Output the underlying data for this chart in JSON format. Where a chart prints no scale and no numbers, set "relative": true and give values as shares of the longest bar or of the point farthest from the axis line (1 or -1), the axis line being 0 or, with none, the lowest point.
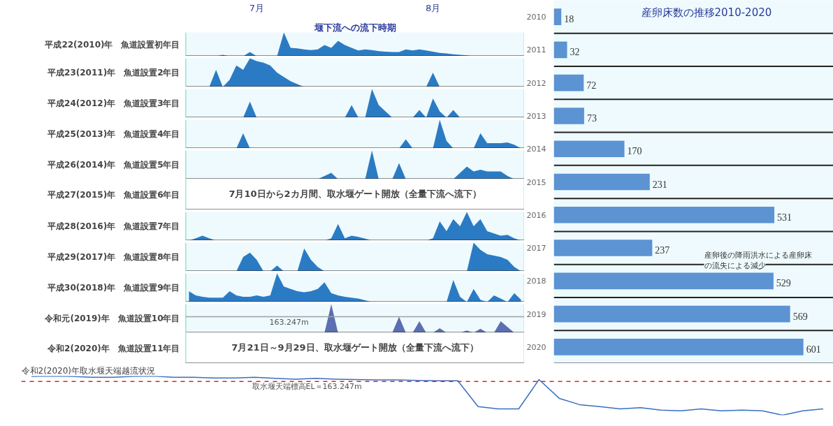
{
  "chart_data": [
    {
      "type": "area",
      "relative": true,
      "ylabel": "平成22(2010)年　魚道設置初年目",
      "tick_labels": "x",
      "annotations": [
        "堰下流への流下時期"
      ],
      "color": "#2b7bc4",
      "categories": [
        null,
        null,
        null,
        null,
        null,
        null,
        null,
        null,
        null,
        null,
        "7月",
        null,
        null,
        null,
        null,
        null,
        null,
        null,
        null,
        null,
        null,
        null,
        null,
        null,
        null,
        null,
        null,
        null,
        null,
        null,
        null,
        null,
        null,
        null,
        null,
        null,
        "8月",
        null,
        null,
        null,
        null,
        null,
        null,
        null,
        null,
        null,
        null,
        null,
        null,
        null
      ],
      "values": [
        0,
        0,
        0,
        0,
        0,
        0.06,
        0,
        0,
        0,
        0.18,
        0,
        0,
        0,
        0,
        1,
        0.35,
        0.33,
        0.29,
        0.26,
        0.29,
        0.47,
        0.35,
        0.65,
        0.47,
        0.35,
        0.24,
        0.29,
        0.26,
        0.21,
        0.19,
        0.18,
        0.18,
        0.29,
        0.24,
        0.29,
        0.24,
        0.19,
        0.14,
        0.12,
        0.08,
        0.06,
        0.04,
        0,
        0,
        0,
        0,
        0,
        0,
        0,
        0
      ]
    },
    {
      "type": "area",
      "relative": true,
      "ylabel": "平成23(2011)年　魚道設置2年目",
      "tick_labels": false,
      "color": "#2b7bc4",
      "categories": [
        null,
        null,
        null,
        null,
        null,
        null,
        null,
        null,
        null,
        null,
        null,
        null,
        null,
        null,
        null,
        null,
        null,
        null,
        null,
        null,
        null,
        null,
        null,
        null,
        null,
        null,
        null,
        null,
        null,
        null,
        null,
        null,
        null,
        null,
        null,
        null,
        null,
        null,
        null,
        null,
        null,
        null,
        null,
        null,
        null,
        null,
        null,
        null,
        null,
        null
      ],
      "values": [
        0,
        0,
        0,
        0,
        0.6,
        0,
        0.25,
        0.75,
        0.6,
        1,
        0.9,
        0.85,
        0.75,
        0.5,
        0.35,
        0.2,
        0.1,
        0,
        0,
        0,
        0,
        0,
        0,
        0,
        0,
        0,
        0,
        0,
        0,
        0,
        0,
        0,
        0,
        0,
        0,
        0,
        0.5,
        0,
        0,
        0,
        0,
        0,
        0,
        0,
        0,
        0,
        0,
        0,
        0,
        0
      ]
    },
    {
      "type": "area",
      "relative": true,
      "ylabel": "平成24(2012)年　魚道設置3年目",
      "tick_labels": false,
      "color": "#2b7bc4",
      "categories": [
        null,
        null,
        null,
        null,
        null,
        null,
        null,
        null,
        null,
        null,
        null,
        null,
        null,
        null,
        null,
        null,
        null,
        null,
        null,
        null,
        null,
        null,
        null,
        null,
        null,
        null,
        null,
        null,
        null,
        null,
        null,
        null,
        null,
        null,
        null,
        null,
        null,
        null,
        null,
        null,
        null,
        null,
        null,
        null,
        null,
        null,
        null,
        null,
        null,
        null
      ],
      "values": [
        0,
        0,
        0,
        0,
        0,
        0,
        0,
        0,
        0,
        0.56,
        0,
        0,
        0,
        0,
        0,
        0,
        0,
        0,
        0,
        0,
        0,
        0,
        0,
        0,
        0.44,
        0,
        0,
        1,
        0.44,
        0.22,
        0,
        0,
        0,
        0,
        0.27,
        0,
        0.67,
        0.22,
        0,
        0.27,
        0,
        0,
        0,
        0,
        0,
        0,
        0,
        0,
        0,
        0
      ]
    },
    {
      "type": "area",
      "relative": true,
      "ylabel": "平成25(2013)年　魚道設置4年目",
      "tick_labels": false,
      "color": "#2b7bc4",
      "categories": [
        null,
        null,
        null,
        null,
        null,
        null,
        null,
        null,
        null,
        null,
        null,
        null,
        null,
        null,
        null,
        null,
        null,
        null,
        null,
        null,
        null,
        null,
        null,
        null,
        null,
        null,
        null,
        null,
        null,
        null,
        null,
        null,
        null,
        null,
        null,
        null,
        null,
        null,
        null,
        null,
        null,
        null,
        null,
        null,
        null,
        null,
        null,
        null,
        null,
        null
      ],
      "values": [
        0,
        0,
        0,
        0,
        0,
        0,
        0,
        0,
        0.53,
        0,
        0,
        0,
        0,
        0,
        0,
        0,
        0,
        0,
        0,
        0,
        0,
        0,
        0,
        0,
        0,
        0,
        0,
        0,
        0,
        0,
        0,
        0,
        0.32,
        0,
        0,
        0,
        0,
        1,
        0.26,
        0,
        0,
        0,
        0,
        0.53,
        0.18,
        0.18,
        0.18,
        0.21,
        0.13,
        0
      ]
    },
    {
      "type": "area",
      "relative": true,
      "ylabel": "平成26(2014)年　魚道設置5年目",
      "tick_labels": false,
      "color": "#2b7bc4",
      "categories": [
        null,
        null,
        null,
        null,
        null,
        null,
        null,
        null,
        null,
        null,
        null,
        null,
        null,
        null,
        null,
        null,
        null,
        null,
        null,
        null,
        null,
        null,
        null,
        null,
        null,
        null,
        null,
        null,
        null,
        null,
        null,
        null,
        null,
        null,
        null,
        null,
        null,
        null,
        null,
        null,
        null,
        null,
        null,
        null,
        null,
        null,
        null,
        null,
        null,
        null
      ],
      "values": [
        0,
        0,
        0,
        0,
        0,
        0,
        0,
        0,
        0,
        0,
        0,
        0,
        0,
        0,
        0,
        0,
        0,
        0,
        0,
        0,
        0.11,
        0.22,
        0,
        0,
        0,
        0,
        0,
        1,
        0,
        0,
        0,
        0.56,
        0,
        0,
        0,
        0,
        0,
        0,
        0,
        0,
        0.22,
        0.44,
        0.27,
        0.33,
        0.27,
        0.27,
        0.27,
        0.11,
        0,
        0
      ]
    },
    {
      "type": "other",
      "ylabel": "平成27(2015)年　魚道設置6年目",
      "annotations": [
        "7月10日から2カ月間、取水堰ゲート開放（全量下流へ流下）"
      ]
    },
    {
      "type": "area",
      "relative": true,
      "ylabel": "平成28(2016)年　魚道設置7年目",
      "tick_labels": false,
      "color": "#2b7bc4",
      "categories": [
        null,
        null,
        null,
        null,
        null,
        null,
        null,
        null,
        null,
        null,
        null,
        null,
        null,
        null,
        null,
        null,
        null,
        null,
        null,
        null,
        null,
        null,
        null,
        null,
        null,
        null,
        null,
        null,
        null,
        null,
        null,
        null,
        null,
        null,
        null,
        null,
        null,
        null,
        null,
        null,
        null,
        null,
        null,
        null,
        null,
        null,
        null,
        null,
        null,
        null
      ],
      "values": [
        0,
        0.08,
        0.17,
        0.08,
        0,
        0,
        0,
        0,
        0,
        0,
        0,
        0,
        0,
        0,
        0,
        0,
        0,
        0,
        0,
        0,
        0,
        0.08,
        0.58,
        0.08,
        0.17,
        0.13,
        0.07,
        0,
        0,
        0,
        0,
        0,
        0,
        0,
        0,
        0,
        0.08,
        0.67,
        0.33,
        0.75,
        0.5,
        1,
        0.5,
        0.75,
        0.33,
        0.25,
        0.17,
        0.2,
        0.08,
        0
      ]
    },
    {
      "type": "area",
      "relative": true,
      "ylabel": "平成29(2017)年　魚道設置8年目",
      "tick_labels": false,
      "color": "#2b7bc4",
      "categories": [
        null,
        null,
        null,
        null,
        null,
        null,
        null,
        null,
        null,
        null,
        null,
        null,
        null,
        null,
        null,
        null,
        null,
        null,
        null,
        null,
        null,
        null,
        null,
        null,
        null,
        null,
        null,
        null,
        null,
        null,
        null,
        null,
        null,
        null,
        null,
        null,
        null,
        null,
        null,
        null,
        null,
        null,
        null,
        null,
        null,
        null,
        null,
        null,
        null,
        null
      ],
      "values": [
        0,
        0,
        0,
        0,
        0,
        0,
        0,
        0,
        0.5,
        0.65,
        0.4,
        0,
        0,
        0.2,
        0,
        0,
        0,
        0.8,
        0.4,
        0.15,
        0,
        0,
        0,
        0,
        0,
        0,
        0,
        0,
        0,
        0,
        0,
        0,
        0,
        0,
        0,
        0,
        0,
        0,
        0,
        0,
        0,
        0,
        1,
        0.75,
        0.6,
        0.55,
        0.5,
        0.4,
        0.15,
        0
      ]
    },
    {
      "type": "area",
      "relative": true,
      "ylabel": "平成30(2018)年　魚道設置9年目",
      "tick_labels": false,
      "color": "#2b7bc4",
      "categories": [
        null,
        null,
        null,
        null,
        null,
        null,
        null,
        null,
        null,
        null,
        null,
        null,
        null,
        null,
        null,
        null,
        null,
        null,
        null,
        null,
        null,
        null,
        null,
        null,
        null,
        null,
        null,
        null,
        null,
        null,
        null,
        null,
        null,
        null,
        null,
        null,
        null,
        null,
        null,
        null,
        null,
        null,
        null,
        null,
        null,
        null,
        null,
        null,
        null,
        null
      ],
      "values": [
        0.38,
        0.23,
        0.18,
        0.15,
        0.15,
        0.15,
        0.38,
        0.23,
        0.18,
        0.18,
        0.23,
        0.18,
        0.23,
        1,
        0.54,
        0.46,
        0.38,
        0.34,
        0.38,
        0.46,
        0.69,
        0.31,
        0.23,
        0.18,
        0.15,
        0.12,
        0.06,
        0,
        0,
        0,
        0,
        0,
        0,
        0,
        0,
        0,
        0,
        0,
        0,
        0.77,
        0.18,
        0,
        0.46,
        0.08,
        0,
        0.23,
        0.12,
        0,
        0.31,
        0.08
      ]
    },
    {
      "type": "area",
      "relative": true,
      "ylabel": "令和元(2019)年　魚道設置10年目",
      "tick_labels": false,
      "ref_lines": [
        {
          "axis": "y",
          "value": 0.56,
          "label": "163.247m",
          "color": "#a0a0a0"
        }
      ],
      "color": "#5c6fb0",
      "categories": [
        null,
        null,
        null,
        null,
        null,
        null,
        null,
        null,
        null,
        null,
        null,
        null,
        null,
        null,
        null,
        null,
        null,
        null,
        null,
        null,
        null,
        null,
        null,
        null,
        null,
        null,
        null,
        null,
        null,
        null,
        null,
        null,
        null,
        null,
        null,
        null,
        null,
        null,
        null,
        null,
        null,
        null,
        null,
        null,
        null,
        null,
        null,
        null,
        null,
        null
      ],
      "values": [
        0,
        0,
        0,
        0,
        0,
        0,
        0,
        0,
        0,
        0,
        0,
        0,
        0,
        0,
        0,
        0,
        0,
        0,
        0,
        0,
        0,
        1,
        0,
        0,
        0,
        0,
        0,
        0,
        0,
        0,
        0,
        0.56,
        0,
        0,
        0.4,
        0,
        0,
        0.16,
        0,
        0,
        0,
        0.08,
        0,
        0.14,
        0,
        0,
        0.4,
        0.2,
        0,
        0
      ]
    },
    {
      "type": "other",
      "ylabel": "令和2(2020)年　魚道設置11年目",
      "annotations": [
        "7月21日～9月29日、取水堰ゲート開放（全量下流へ流下）"
      ]
    },
    {
      "type": "bar",
      "orientation": "horizontal",
      "title": "産卵床数の推移2010-2020",
      "categories": [
        "2010",
        "2011",
        "2012",
        "2013",
        "2014",
        "2015",
        "2016",
        "2017",
        "2018",
        "2019",
        "2020"
      ],
      "values": [
        18,
        32,
        72,
        73,
        170,
        231,
        531,
        237,
        529,
        569,
        601
      ],
      "color": "#5b93d3",
      "data_labels": true,
      "annotations": [
        "産卵後の降雨洪水による産卵床の流失による減少"
      ]
    },
    {
      "type": "line",
      "relative": true,
      "title": "令和2(2020)年取水堰天端越流状況",
      "color": "#3a6fc0",
      "tick_labels": false,
      "categories": [
        null,
        null,
        null,
        null,
        null,
        null,
        null,
        null,
        null,
        null,
        null,
        null,
        null,
        null,
        null,
        null,
        null,
        null,
        null,
        null,
        null,
        null,
        null,
        null,
        null,
        null,
        null,
        null,
        null,
        null,
        null,
        null,
        null,
        null,
        null,
        null,
        null,
        null,
        null,
        null
      ],
      "values": [
        0.99,
        1,
        0.99,
        0.97,
        0.97,
        0.99,
        1,
        0.97,
        0.97,
        0.95,
        0.95,
        0.97,
        0.94,
        0.92,
        0.94,
        0.92,
        0.91,
        0.9,
        0.9,
        0.89,
        0.88,
        0.88,
        0.22,
        0.16,
        0.16,
        0.91,
        0.43,
        0.27,
        0.22,
        0.16,
        0.19,
        0.13,
        0.11,
        0.16,
        0.11,
        0.13,
        0.11,
        0,
        0.11,
        0.16
      ],
      "ref_lines": [
        {
          "axis": "y",
          "value": 0.86,
          "label": "取水堰天端標高EL＝163.247m",
          "color": "#e02020",
          "line_style": "dashed"
        }
      ]
    }
  ]
}
